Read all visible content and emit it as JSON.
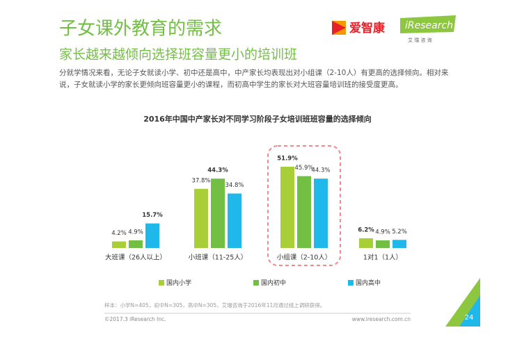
{
  "header": {
    "title": "子女课外教育的需求",
    "subtitle": "家长越来越倾向选择班容量更小的培训班",
    "body": "分就学情况来看，无论子女就读小学、初中还是高中，中产家长均表现出对小组课（2-10人）有更高的选择倾向。相对来说，子女就读小学的家长更倾向班容量更小的课程，而初高中学生的家长对大班容量培训班的接受度更高。",
    "logo_brand": "爱智康",
    "logo_iresearch": "iResearch",
    "logo_cn": "艾 瑞 咨 询"
  },
  "chart_data": {
    "type": "bar",
    "title": "2016年中国中产家长对不同学习阶段子女培训班班容量的选择倾向",
    "categories": [
      "大班课（26人以上）",
      "小班课（11-25人）",
      "小组课（2-10人）",
      "1对1（1人）"
    ],
    "series": [
      {
        "name": "国内小学",
        "color": "#a8cf38",
        "values": [
          4.2,
          37.8,
          51.9,
          6.2
        ],
        "value_labels": [
          "4.2%",
          "37.8%",
          "51.9%",
          "6.2%"
        ]
      },
      {
        "name": "国内初中",
        "color": "#72bf44",
        "values": [
          4.9,
          44.3,
          45.9,
          4.9
        ],
        "value_labels": [
          "4.9%",
          "44.3%",
          "45.9%",
          "4.9%"
        ]
      },
      {
        "name": "国内高中",
        "color": "#1fb8ea",
        "values": [
          15.7,
          34.8,
          44.3,
          5.2
        ],
        "value_labels": [
          "15.7%",
          "34.8%",
          "44.3%",
          "5.2%"
        ]
      }
    ],
    "legend": "bottom"
  },
  "footer": {
    "note": "样本：小学N=405，初中N=305，高中N=305，艾瑞咨询于2016年11月通过线上调研获得。",
    "copyright": "©2017.3 iResearch Inc.",
    "website": "www.iresearch.com.cn",
    "page": "24"
  }
}
